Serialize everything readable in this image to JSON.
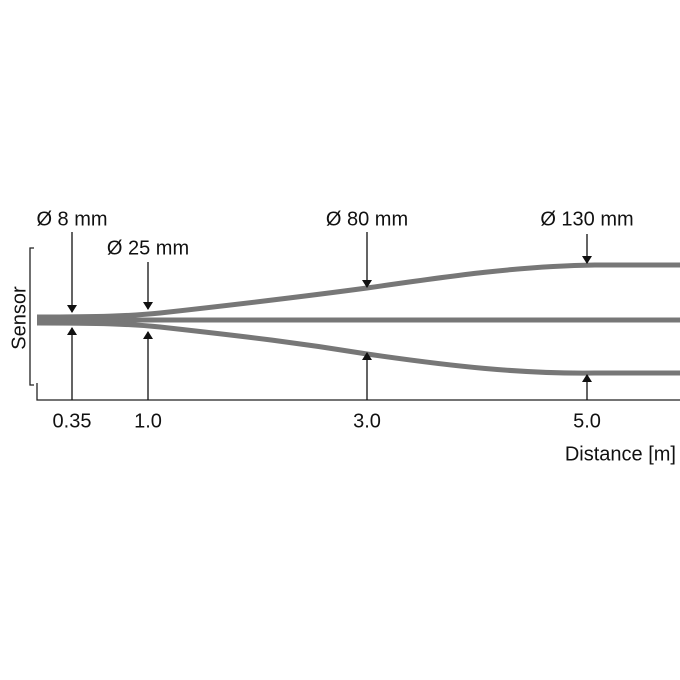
{
  "sensor_label": "Sensor",
  "axis_label": "Distance [m]",
  "markers": [
    {
      "distance": "0.35",
      "diameter": "Ø 8 mm"
    },
    {
      "distance": "1.0",
      "diameter": "Ø 25 mm"
    },
    {
      "distance": "3.0",
      "diameter": "Ø 80 mm"
    },
    {
      "distance": "5.0",
      "diameter": "Ø 130 mm"
    }
  ]
}
